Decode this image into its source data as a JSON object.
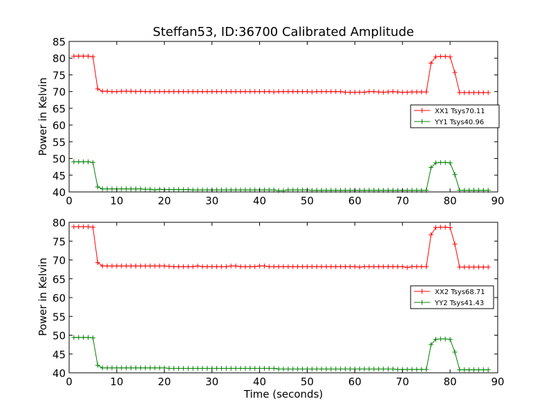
{
  "chart_data": [
    {
      "type": "line",
      "title": "Steffan53, ID:36700 Calibrated Amplitude",
      "xlabel": "",
      "ylabel": "Power in Kelvin",
      "xlim": [
        0,
        90
      ],
      "ylim": [
        40,
        85
      ],
      "xticks": [
        0,
        10,
        20,
        30,
        40,
        50,
        60,
        70,
        80,
        90
      ],
      "yticks": [
        40,
        45,
        50,
        55,
        60,
        65,
        70,
        75,
        80,
        85
      ],
      "legend_position": "center-right",
      "x": [
        1,
        2,
        3,
        4,
        5,
        6,
        7,
        8,
        9,
        10,
        11,
        12,
        13,
        14,
        15,
        16,
        17,
        18,
        19,
        20,
        21,
        22,
        23,
        24,
        25,
        26,
        27,
        28,
        29,
        30,
        31,
        32,
        33,
        34,
        35,
        36,
        37,
        38,
        39,
        40,
        41,
        42,
        43,
        44,
        45,
        46,
        47,
        48,
        49,
        50,
        51,
        52,
        53,
        54,
        55,
        56,
        57,
        58,
        59,
        60,
        61,
        62,
        63,
        64,
        65,
        66,
        67,
        68,
        69,
        70,
        71,
        72,
        73,
        74,
        75,
        76,
        77,
        78,
        79,
        80,
        81,
        82,
        83,
        84,
        85,
        86,
        87,
        88
      ],
      "series": [
        {
          "name": "XX1 Tsys70.11",
          "color": "#ff0000",
          "values": [
            80.6,
            80.6,
            80.6,
            80.6,
            80.4,
            70.8,
            70.1,
            70.1,
            70.0,
            70.0,
            70.1,
            70.1,
            70.1,
            70.0,
            70.1,
            70.0,
            70.0,
            70.0,
            70.0,
            70.0,
            70.0,
            70.0,
            70.0,
            70.0,
            70.0,
            70.0,
            70.0,
            70.0,
            70.0,
            70.0,
            70.0,
            70.0,
            70.0,
            70.0,
            70.0,
            70.0,
            70.0,
            70.0,
            70.0,
            70.0,
            70.0,
            70.0,
            69.9,
            70.0,
            70.0,
            70.0,
            70.0,
            70.0,
            70.0,
            70.0,
            69.9,
            70.0,
            70.0,
            70.0,
            70.0,
            70.0,
            70.0,
            69.8,
            69.8,
            69.8,
            69.8,
            69.8,
            70.0,
            70.0,
            69.9,
            69.8,
            69.9,
            70.0,
            69.9,
            69.8,
            69.8,
            69.9,
            69.9,
            69.9,
            69.9,
            78.5,
            80.4,
            80.5,
            80.5,
            80.4,
            75.7,
            69.7,
            69.7,
            69.7,
            69.7,
            69.7,
            69.7,
            69.7
          ]
        },
        {
          "name": "YY1 Tsys40.96",
          "color": "#008000",
          "values": [
            49.0,
            49.0,
            49.0,
            49.0,
            48.8,
            41.5,
            40.9,
            40.9,
            40.9,
            40.9,
            40.9,
            40.9,
            40.9,
            40.9,
            40.9,
            40.8,
            40.8,
            40.6,
            40.8,
            40.7,
            40.7,
            40.7,
            40.7,
            40.7,
            40.7,
            40.6,
            40.6,
            40.6,
            40.6,
            40.6,
            40.6,
            40.6,
            40.6,
            40.6,
            40.6,
            40.6,
            40.6,
            40.6,
            40.6,
            40.6,
            40.6,
            40.6,
            40.6,
            40.4,
            40.4,
            40.6,
            40.6,
            40.6,
            40.6,
            40.6,
            40.5,
            40.5,
            40.5,
            40.5,
            40.5,
            40.5,
            40.5,
            40.5,
            40.5,
            40.5,
            40.5,
            40.5,
            40.5,
            40.5,
            40.5,
            40.5,
            40.5,
            40.5,
            40.5,
            40.5,
            40.5,
            40.5,
            40.5,
            40.5,
            40.5,
            47.3,
            48.7,
            48.8,
            48.8,
            48.7,
            45.2,
            40.5,
            40.5,
            40.5,
            40.5,
            40.5,
            40.5,
            40.5
          ]
        }
      ]
    },
    {
      "type": "line",
      "title": "",
      "xlabel": "Time (seconds)",
      "ylabel": "Power in Kelvin",
      "xlim": [
        0,
        90
      ],
      "ylim": [
        40,
        80
      ],
      "xticks": [
        0,
        10,
        20,
        30,
        40,
        50,
        60,
        70,
        80,
        90
      ],
      "yticks": [
        40,
        45,
        50,
        55,
        60,
        65,
        70,
        75,
        80
      ],
      "legend_position": "center-right",
      "x": [
        1,
        2,
        3,
        4,
        5,
        6,
        7,
        8,
        9,
        10,
        11,
        12,
        13,
        14,
        15,
        16,
        17,
        18,
        19,
        20,
        21,
        22,
        23,
        24,
        25,
        26,
        27,
        28,
        29,
        30,
        31,
        32,
        33,
        34,
        35,
        36,
        37,
        38,
        39,
        40,
        41,
        42,
        43,
        44,
        45,
        46,
        47,
        48,
        49,
        50,
        51,
        52,
        53,
        54,
        55,
        56,
        57,
        58,
        59,
        60,
        61,
        62,
        63,
        64,
        65,
        66,
        67,
        68,
        69,
        70,
        71,
        72,
        73,
        74,
        75,
        76,
        77,
        78,
        79,
        80,
        81,
        82,
        83,
        84,
        85,
        86,
        87,
        88
      ],
      "series": [
        {
          "name": "XX2 Tsys68.71",
          "color": "#ff0000",
          "values": [
            78.8,
            78.8,
            78.8,
            78.8,
            78.7,
            69.3,
            68.4,
            68.4,
            68.4,
            68.4,
            68.4,
            68.4,
            68.4,
            68.4,
            68.4,
            68.4,
            68.4,
            68.4,
            68.4,
            68.4,
            68.3,
            68.2,
            68.2,
            68.2,
            68.2,
            68.2,
            68.4,
            68.2,
            68.2,
            68.2,
            68.2,
            68.2,
            68.2,
            68.4,
            68.4,
            68.2,
            68.2,
            68.2,
            68.2,
            68.4,
            68.4,
            68.2,
            68.2,
            68.2,
            68.2,
            68.2,
            68.2,
            68.2,
            68.2,
            68.2,
            68.2,
            68.2,
            68.2,
            68.2,
            68.2,
            68.2,
            68.2,
            68.2,
            68.2,
            68.2,
            68.1,
            68.2,
            68.2,
            68.2,
            68.2,
            68.2,
            68.2,
            68.2,
            68.2,
            68.2,
            68.0,
            68.2,
            68.2,
            68.2,
            68.2,
            76.7,
            78.6,
            78.7,
            78.7,
            78.6,
            74.2,
            68.1,
            68.1,
            68.1,
            68.1,
            68.1,
            68.1,
            68.1
          ]
        },
        {
          "name": "YY2 Tsys41.43",
          "color": "#008000",
          "values": [
            49.4,
            49.4,
            49.4,
            49.4,
            49.3,
            42.0,
            41.3,
            41.3,
            41.3,
            41.3,
            41.3,
            41.3,
            41.3,
            41.3,
            41.3,
            41.3,
            41.3,
            41.3,
            41.3,
            41.3,
            41.2,
            41.2,
            41.2,
            41.2,
            41.2,
            41.2,
            41.2,
            41.2,
            41.2,
            41.2,
            41.2,
            41.2,
            41.2,
            41.2,
            41.2,
            41.2,
            41.2,
            41.2,
            41.2,
            41.2,
            41.2,
            41.2,
            41.2,
            41.0,
            41.0,
            41.0,
            41.0,
            41.0,
            41.0,
            41.0,
            41.0,
            41.0,
            41.0,
            41.0,
            41.0,
            41.0,
            41.0,
            41.0,
            41.0,
            41.0,
            41.0,
            41.0,
            41.0,
            41.0,
            41.0,
            41.0,
            41.0,
            41.0,
            40.9,
            40.9,
            40.9,
            40.9,
            40.9,
            40.9,
            40.9,
            47.5,
            48.9,
            49.0,
            49.0,
            48.9,
            45.5,
            40.8,
            40.8,
            40.8,
            40.8,
            40.8,
            40.8,
            40.8
          ]
        }
      ]
    }
  ]
}
